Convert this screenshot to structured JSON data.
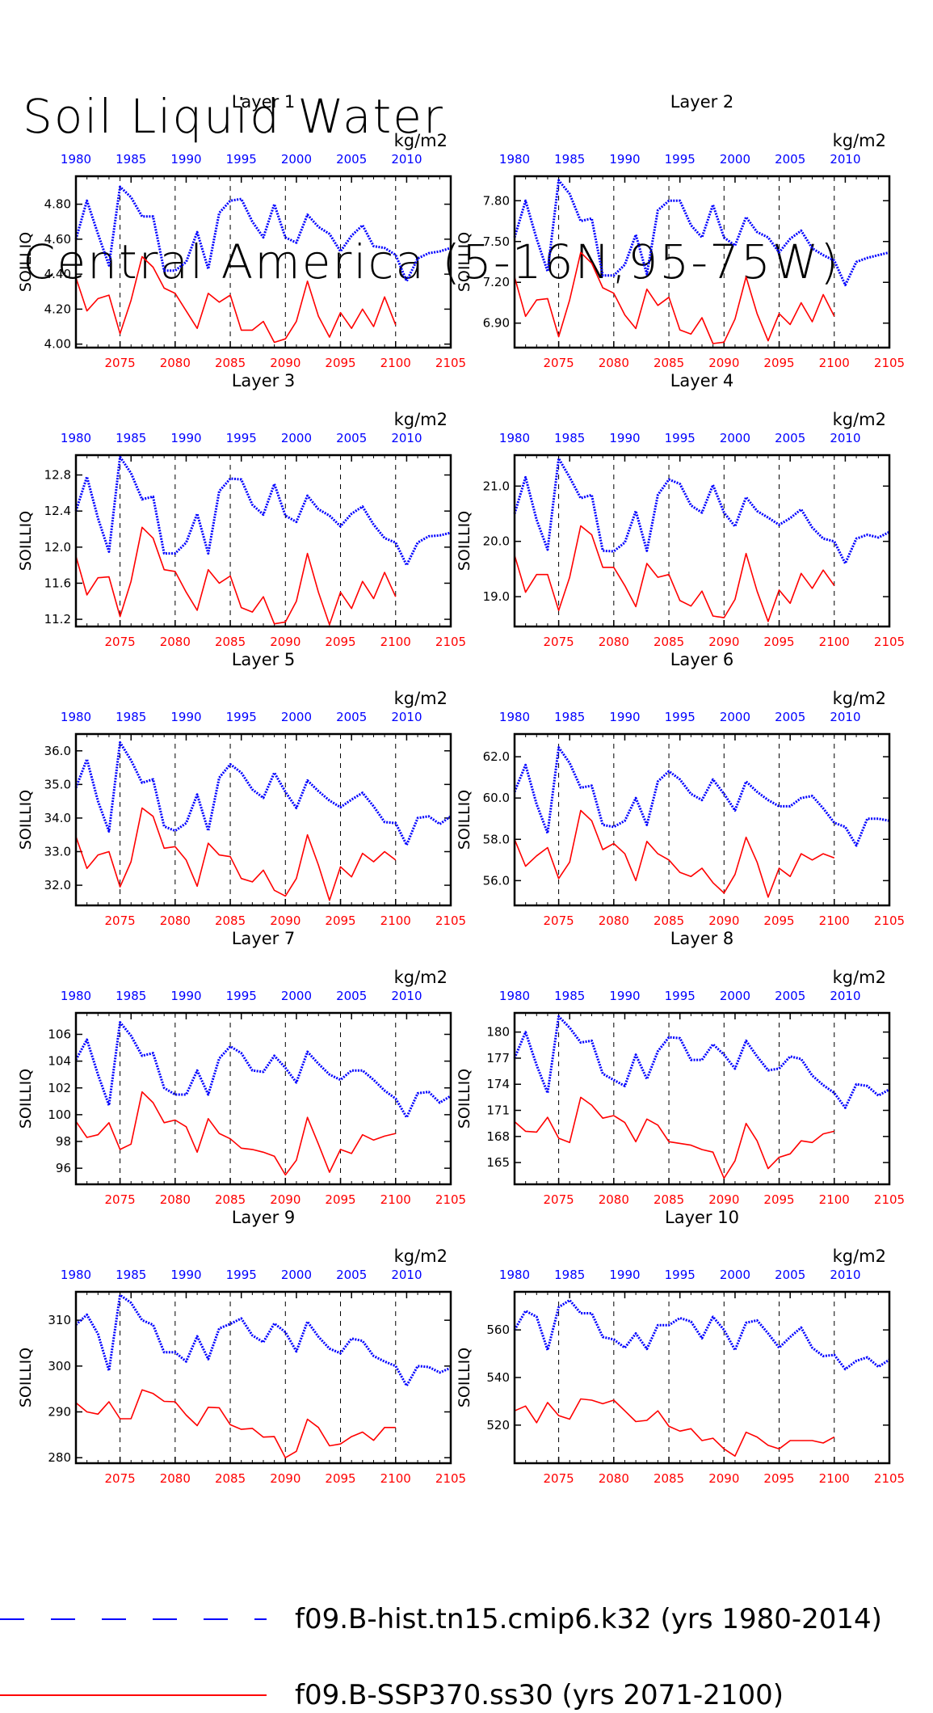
{
  "title": {
    "line1": "Soil Liquid Water",
    "line2": "Central America (5-16N,95-75W)"
  },
  "colors": {
    "hist": "#0000ff",
    "ssp": "#ff0000",
    "axis": "#000000"
  },
  "top_axis": {
    "ticks": [
      "1980",
      "1985",
      "1990",
      "1995",
      "2000",
      "2005",
      "2010"
    ],
    "unit": "kg/m2"
  },
  "bottom_axis": {
    "ticks": [
      "2075",
      "2080",
      "2085",
      "2090",
      "2095",
      "2100",
      "2105"
    ]
  },
  "legend": {
    "hist": "f09.B-hist.tn15.cmip6.k32 (yrs 1980-2014)",
    "ssp": "f09.B-SSP370.ss30 (yrs 2071-2100)"
  },
  "chart_data": [
    {
      "type": "line",
      "title": "Layer 1",
      "ylabel": "SOILLIQ",
      "ylim": [
        3.98,
        4.96
      ],
      "yticks": [
        "4.00",
        "4.20",
        "4.40",
        "4.60",
        "4.80"
      ],
      "ytick_values": [
        4.0,
        4.2,
        4.4,
        4.6,
        4.8
      ],
      "series": [
        {
          "name": "f09.B-hist.tn15.cmip6.k32 (yrs 1980-2014)",
          "x_start": 1980,
          "values": [
            4.6,
            4.82,
            4.63,
            4.45,
            4.9,
            4.84,
            4.73,
            4.73,
            4.42,
            4.42,
            4.47,
            4.64,
            4.43,
            4.75,
            4.82,
            4.83,
            4.7,
            4.61,
            4.8,
            4.61,
            4.58,
            4.74,
            4.67,
            4.63,
            4.53,
            4.62,
            4.68,
            4.56,
            4.55,
            4.51,
            4.36,
            4.49,
            4.52,
            4.53,
            4.55
          ]
        },
        {
          "name": "f09.B-SSP370.ss30 (yrs 2071-2100)",
          "x_start": 2071,
          "values": [
            4.38,
            4.19,
            4.26,
            4.28,
            4.06,
            4.25,
            4.5,
            4.44,
            4.32,
            4.29,
            4.19,
            4.09,
            4.29,
            4.24,
            4.28,
            4.08,
            4.08,
            4.13,
            4.01,
            4.03,
            4.13,
            4.36,
            4.16,
            4.04,
            4.18,
            4.09,
            4.2,
            4.1,
            4.27,
            4.11
          ]
        }
      ]
    },
    {
      "type": "line",
      "title": "Layer 2",
      "ylabel": "SOILLIQ",
      "ylim": [
        6.72,
        7.98
      ],
      "yticks": [
        "6.90",
        "7.20",
        "7.50",
        "7.80"
      ],
      "ytick_values": [
        6.9,
        7.2,
        7.5,
        7.8
      ],
      "series": [
        {
          "name": "f09.B-hist.tn15.cmip6.k32 (yrs 1980-2014)",
          "x_start": 1980,
          "values": [
            7.53,
            7.8,
            7.52,
            7.28,
            7.95,
            7.85,
            7.65,
            7.67,
            7.25,
            7.25,
            7.33,
            7.55,
            7.26,
            7.73,
            7.8,
            7.8,
            7.62,
            7.53,
            7.77,
            7.53,
            7.47,
            7.68,
            7.57,
            7.53,
            7.42,
            7.52,
            7.58,
            7.45,
            7.4,
            7.36,
            7.18,
            7.35,
            7.38,
            7.4,
            7.42
          ]
        },
        {
          "name": "f09.B-SSP370.ss30 (yrs 2071-2100)",
          "x_start": 2071,
          "values": [
            7.24,
            6.95,
            7.07,
            7.08,
            6.8,
            7.07,
            7.42,
            7.34,
            7.16,
            7.12,
            6.96,
            6.86,
            7.15,
            7.03,
            7.09,
            6.85,
            6.82,
            6.94,
            6.75,
            6.76,
            6.93,
            7.24,
            6.97,
            6.77,
            6.97,
            6.89,
            7.05,
            6.91,
            7.11,
            6.95
          ]
        }
      ]
    },
    {
      "type": "line",
      "title": "Layer 3",
      "ylabel": "SOILLIQ",
      "ylim": [
        11.12,
        13.02
      ],
      "yticks": [
        "11.2",
        "11.6",
        "12.0",
        "12.4",
        "12.8"
      ],
      "ytick_values": [
        11.2,
        11.6,
        12.0,
        12.4,
        12.8
      ],
      "series": [
        {
          "name": "f09.B-hist.tn15.cmip6.k32 (yrs 1980-2014)",
          "x_start": 1980,
          "values": [
            12.4,
            12.78,
            12.32,
            11.95,
            13.0,
            12.82,
            12.53,
            12.56,
            11.93,
            11.93,
            12.05,
            12.37,
            11.93,
            12.62,
            12.76,
            12.75,
            12.47,
            12.36,
            12.7,
            12.35,
            12.28,
            12.57,
            12.42,
            12.35,
            12.23,
            12.37,
            12.45,
            12.25,
            12.1,
            12.05,
            11.8,
            12.05,
            12.12,
            12.13,
            12.16
          ]
        },
        {
          "name": "f09.B-SSP370.ss30 (yrs 2071-2100)",
          "x_start": 2071,
          "values": [
            11.9,
            11.47,
            11.66,
            11.67,
            11.23,
            11.62,
            12.22,
            12.1,
            11.75,
            11.73,
            11.5,
            11.3,
            11.75,
            11.6,
            11.68,
            11.33,
            11.28,
            11.45,
            11.15,
            11.17,
            11.4,
            11.93,
            11.5,
            11.14,
            11.5,
            11.32,
            11.62,
            11.43,
            11.72,
            11.45
          ]
        }
      ]
    },
    {
      "type": "line",
      "title": "Layer 4",
      "ylabel": "SOILLIQ",
      "ylim": [
        18.46,
        21.56
      ],
      "yticks": [
        "19.0",
        "20.0",
        "21.0"
      ],
      "ytick_values": [
        19.0,
        20.0,
        21.0
      ],
      "series": [
        {
          "name": "f09.B-hist.tn15.cmip6.k32 (yrs 1980-2014)",
          "x_start": 1980,
          "values": [
            20.5,
            21.16,
            20.39,
            19.85,
            21.5,
            21.16,
            20.78,
            20.84,
            19.83,
            19.82,
            19.98,
            20.55,
            19.83,
            20.84,
            21.12,
            21.04,
            20.65,
            20.52,
            21.02,
            20.52,
            20.27,
            20.8,
            20.55,
            20.43,
            20.3,
            20.42,
            20.58,
            20.25,
            20.05,
            20.0,
            19.6,
            20.05,
            20.12,
            20.07,
            20.17
          ]
        },
        {
          "name": "f09.B-SSP370.ss30 (yrs 2071-2100)",
          "x_start": 2071,
          "values": [
            19.75,
            19.08,
            19.4,
            19.4,
            18.75,
            19.35,
            20.28,
            20.12,
            19.53,
            19.53,
            19.2,
            18.82,
            19.6,
            19.35,
            19.4,
            18.93,
            18.83,
            19.1,
            18.65,
            18.62,
            18.95,
            19.78,
            19.1,
            18.55,
            19.12,
            18.88,
            19.42,
            19.15,
            19.48,
            19.2
          ]
        }
      ]
    },
    {
      "type": "line",
      "title": "Layer 5",
      "ylabel": "SOILLIQ",
      "ylim": [
        31.4,
        36.5
      ],
      "yticks": [
        "32.0",
        "33.0",
        "34.0",
        "35.0",
        "36.0"
      ],
      "ytick_values": [
        32.0,
        33.0,
        34.0,
        35.0,
        36.0
      ],
      "series": [
        {
          "name": "f09.B-hist.tn15.cmip6.k32 (yrs 1980-2014)",
          "x_start": 1980,
          "values": [
            34.9,
            35.75,
            34.5,
            33.6,
            36.25,
            35.72,
            35.05,
            35.15,
            33.75,
            33.62,
            33.85,
            34.7,
            33.62,
            35.2,
            35.6,
            35.35,
            34.85,
            34.6,
            35.35,
            34.78,
            34.3,
            35.12,
            34.8,
            34.52,
            34.32,
            34.55,
            34.75,
            34.35,
            33.88,
            33.85,
            33.2,
            34.0,
            34.05,
            33.82,
            34.05
          ]
        },
        {
          "name": "f09.B-SSP370.ss30 (yrs 2071-2100)",
          "x_start": 2071,
          "values": [
            33.45,
            32.5,
            32.9,
            33.0,
            31.95,
            32.7,
            34.3,
            34.05,
            33.1,
            33.15,
            32.75,
            31.97,
            33.25,
            32.9,
            32.85,
            32.2,
            32.1,
            32.45,
            31.85,
            31.68,
            32.2,
            33.5,
            32.6,
            31.55,
            32.55,
            32.25,
            32.95,
            32.7,
            33.0,
            32.75
          ]
        }
      ]
    },
    {
      "type": "line",
      "title": "Layer 6",
      "ylabel": "SOILLIQ",
      "ylim": [
        54.8,
        63.1
      ],
      "yticks": [
        "56.0",
        "58.0",
        "60.0",
        "62.0"
      ],
      "ytick_values": [
        56.0,
        58.0,
        60.0,
        62.0
      ],
      "series": [
        {
          "name": "f09.B-hist.tn15.cmip6.k32 (yrs 1980-2014)",
          "x_start": 1980,
          "values": [
            60.3,
            61.6,
            59.7,
            58.3,
            62.45,
            61.7,
            60.5,
            60.6,
            58.7,
            58.6,
            58.9,
            60.0,
            58.7,
            60.8,
            61.3,
            60.9,
            60.2,
            59.9,
            60.9,
            60.2,
            59.4,
            60.8,
            60.3,
            59.9,
            59.6,
            59.6,
            60.0,
            60.1,
            59.5,
            58.8,
            58.6,
            57.7,
            59.0,
            59.0,
            58.9
          ]
        },
        {
          "name": "f09.B-SSP370.ss30 (yrs 2071-2100)",
          "x_start": 2071,
          "values": [
            58.0,
            56.7,
            57.2,
            57.6,
            56.1,
            56.9,
            59.4,
            58.9,
            57.5,
            57.8,
            57.3,
            56.0,
            57.9,
            57.3,
            57.0,
            56.4,
            56.2,
            56.6,
            55.9,
            55.4,
            56.3,
            58.1,
            56.9,
            55.2,
            56.6,
            56.2,
            57.3,
            57.0,
            57.3,
            57.1
          ]
        }
      ]
    },
    {
      "type": "line",
      "title": "Layer 7",
      "ylabel": "SOILLIQ",
      "ylim": [
        94.8,
        107.6
      ],
      "yticks": [
        "96",
        "98",
        "100",
        "102",
        "104",
        "106"
      ],
      "ytick_values": [
        96,
        98,
        100,
        102,
        104,
        106
      ],
      "series": [
        {
          "name": "f09.B-hist.tn15.cmip6.k32 (yrs 1980-2014)",
          "x_start": 1980,
          "values": [
            104.1,
            105.6,
            103.0,
            100.7,
            106.9,
            105.9,
            104.4,
            104.6,
            102.0,
            101.5,
            101.5,
            103.3,
            101.5,
            104.2,
            105.1,
            104.6,
            103.3,
            103.2,
            104.4,
            103.5,
            102.4,
            104.7,
            103.8,
            103.0,
            102.6,
            103.3,
            103.3,
            102.6,
            101.8,
            101.2,
            99.8,
            101.6,
            101.7,
            100.9,
            101.4
          ]
        },
        {
          "name": "f09.B-SSP370.ss30 (yrs 2071-2100)",
          "x_start": 2071,
          "values": [
            99.5,
            98.3,
            98.5,
            99.4,
            97.4,
            97.8,
            101.7,
            100.9,
            99.4,
            99.6,
            99.1,
            97.2,
            99.7,
            98.6,
            98.2,
            97.5,
            97.4,
            97.2,
            96.9,
            95.5,
            96.6,
            99.8,
            97.8,
            95.7,
            97.4,
            97.1,
            98.5,
            98.1,
            98.4,
            98.6
          ]
        }
      ]
    },
    {
      "type": "line",
      "title": "Layer 8",
      "ylabel": "SOILLIQ",
      "ylim": [
        162.5,
        182.2
      ],
      "yticks": [
        "165",
        "168",
        "171",
        "174",
        "177",
        "180"
      ],
      "ytick_values": [
        165,
        168,
        171,
        174,
        177,
        180
      ],
      "series": [
        {
          "name": "f09.B-hist.tn15.cmip6.k32 (yrs 1980-2014)",
          "x_start": 1980,
          "values": [
            177.0,
            180.0,
            176.2,
            173.0,
            181.8,
            180.5,
            178.8,
            179.0,
            175.2,
            174.5,
            173.8,
            177.4,
            174.6,
            177.8,
            179.4,
            179.3,
            176.8,
            176.8,
            178.6,
            177.4,
            175.8,
            179.0,
            177.2,
            175.6,
            175.8,
            177.2,
            176.9,
            175.0,
            173.9,
            173.0,
            171.3,
            174.0,
            173.8,
            172.7,
            173.4
          ]
        },
        {
          "name": "f09.B-SSP370.ss30 (yrs 2071-2100)",
          "x_start": 2071,
          "values": [
            169.7,
            168.6,
            168.5,
            170.2,
            167.8,
            167.3,
            172.5,
            171.6,
            170.1,
            170.4,
            169.6,
            167.4,
            170.0,
            169.3,
            167.4,
            167.2,
            167.0,
            166.5,
            166.2,
            163.2,
            165.2,
            169.5,
            167.5,
            164.3,
            165.6,
            166.0,
            167.5,
            167.3,
            168.3,
            168.6
          ]
        }
      ]
    },
    {
      "type": "line",
      "title": "Layer 9",
      "ylabel": "SOILLIQ",
      "ylim": [
        278.8,
        316.2
      ],
      "yticks": [
        "280",
        "290",
        "300",
        "310"
      ],
      "ytick_values": [
        280,
        290,
        300,
        310
      ],
      "series": [
        {
          "name": "f09.B-hist.tn15.cmip6.k32 (yrs 1980-2014)",
          "x_start": 1980,
          "values": [
            309.0,
            311.2,
            307.0,
            299.0,
            315.5,
            313.8,
            310.0,
            309.0,
            303.0,
            303.0,
            301.0,
            306.5,
            301.5,
            308.2,
            309.2,
            310.4,
            306.7,
            305.2,
            309.3,
            307.4,
            303.2,
            309.7,
            306.4,
            303.8,
            302.8,
            306.0,
            305.5,
            302.2,
            301.0,
            300.0,
            295.7,
            300.0,
            299.8,
            298.6,
            299.6
          ]
        },
        {
          "name": "f09.B-SSP370.ss30 (yrs 2071-2100)",
          "x_start": 2071,
          "values": [
            292.0,
            290.0,
            289.5,
            292.2,
            288.5,
            288.5,
            294.8,
            294.0,
            292.3,
            292.2,
            289.3,
            287.0,
            291.0,
            290.9,
            287.2,
            286.2,
            286.4,
            284.5,
            284.6,
            280.0,
            281.4,
            288.4,
            286.6,
            282.6,
            283.0,
            284.6,
            285.6,
            283.8,
            286.6,
            286.6
          ]
        }
      ]
    },
    {
      "type": "line",
      "title": "Layer 10",
      "ylabel": "SOILLIQ",
      "ylim": [
        504.0,
        576.0
      ],
      "yticks": [
        "520",
        "540",
        "560"
      ],
      "ytick_values": [
        520,
        540,
        560
      ],
      "series": [
        {
          "name": "f09.B-hist.tn15.cmip6.k32 (yrs 1980-2014)",
          "x_start": 1980,
          "values": [
            560.0,
            568.0,
            565.5,
            551.5,
            569.5,
            572.5,
            567.0,
            567.0,
            557.0,
            556.0,
            552.5,
            558.5,
            552.0,
            562.0,
            562.0,
            565.0,
            563.5,
            556.5,
            565.5,
            560.0,
            551.5,
            563.0,
            564.0,
            558.5,
            552.5,
            557.0,
            561.0,
            552.5,
            549.0,
            549.5,
            543.5,
            547.0,
            548.5,
            544.5,
            547.5
          ]
        },
        {
          "name": "f09.B-SSP370.ss30 (yrs 2071-2100)",
          "x_start": 2071,
          "values": [
            526.0,
            528.0,
            521.0,
            529.5,
            524.0,
            522.5,
            531.0,
            530.5,
            529.0,
            530.5,
            526.0,
            521.5,
            522.0,
            526.0,
            519.5,
            517.5,
            518.5,
            513.5,
            514.5,
            510.0,
            507.0,
            517.0,
            515.0,
            511.5,
            510.0,
            513.5,
            513.5,
            513.5,
            512.5,
            515.0
          ]
        }
      ]
    }
  ]
}
